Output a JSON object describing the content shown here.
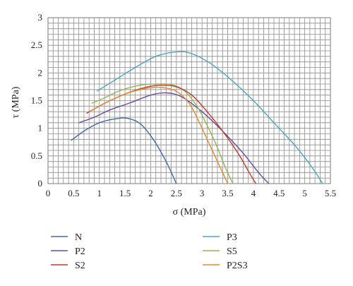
{
  "chart_data": {
    "type": "line",
    "title": "",
    "xlabel": "σ (MPa)",
    "ylabel": "τ (MPa)",
    "xlim": [
      0,
      5.5
    ],
    "ylim": [
      0,
      3
    ],
    "grid": true,
    "legend_position": "bottom",
    "x_ticks": [
      "0",
      "0.5",
      "1",
      "1.5",
      "2",
      "2.5",
      "3",
      "3.5",
      "4",
      "4.5",
      "5",
      "5.5"
    ],
    "y_ticks": [
      "0",
      "0.5",
      "1",
      "1.5",
      "2",
      "2.5",
      "3"
    ],
    "series": [
      {
        "name": "N",
        "color": "#3f6aa5",
        "x": [
          0.45,
          0.7,
          1.0,
          1.3,
          1.55,
          1.8,
          2.05,
          2.3,
          2.5
        ],
        "y": [
          0.78,
          0.95,
          1.1,
          1.17,
          1.18,
          1.08,
          0.8,
          0.4,
          0.0
        ]
      },
      {
        "name": "P3",
        "color": "#4aa3c2",
        "x": [
          0.95,
          1.3,
          1.7,
          2.1,
          2.5,
          2.8,
          3.2,
          3.6,
          4.0,
          4.4,
          4.8,
          5.1,
          5.35
        ],
        "y": [
          1.67,
          1.87,
          2.1,
          2.3,
          2.38,
          2.35,
          2.15,
          1.85,
          1.5,
          1.1,
          0.7,
          0.35,
          0.0
        ]
      },
      {
        "name": "P2",
        "color": "#6a4a9e",
        "x": [
          0.6,
          0.9,
          1.2,
          1.6,
          2.0,
          2.3,
          2.6,
          3.0,
          3.4,
          3.8,
          4.1,
          4.3
        ],
        "y": [
          1.1,
          1.2,
          1.33,
          1.46,
          1.6,
          1.64,
          1.57,
          1.3,
          0.95,
          0.55,
          0.2,
          0.0
        ]
      },
      {
        "name": "S5",
        "color": "#94b450",
        "x": [
          0.85,
          1.1,
          1.4,
          1.8,
          2.1,
          2.4,
          2.65,
          2.9,
          3.1,
          3.3,
          3.45,
          3.6
        ],
        "y": [
          1.45,
          1.55,
          1.68,
          1.78,
          1.8,
          1.79,
          1.68,
          1.4,
          1.05,
          0.65,
          0.3,
          0.0
        ]
      },
      {
        "name": "S2",
        "color": "#c0392b",
        "x": [
          0.75,
          1.1,
          1.5,
          1.9,
          2.2,
          2.5,
          2.8,
          3.1,
          3.4,
          3.7,
          3.95,
          4.05
        ],
        "y": [
          1.27,
          1.45,
          1.62,
          1.74,
          1.78,
          1.75,
          1.6,
          1.3,
          0.95,
          0.55,
          0.15,
          0.0
        ]
      },
      {
        "name": "P2S3",
        "color": "#e08a2c",
        "x": [
          0.8,
          1.1,
          1.5,
          1.9,
          2.2,
          2.5,
          2.75,
          2.95,
          3.15,
          3.35,
          3.5
        ],
        "y": [
          1.3,
          1.45,
          1.62,
          1.72,
          1.74,
          1.67,
          1.45,
          1.1,
          0.7,
          0.3,
          0.0
        ]
      }
    ]
  }
}
